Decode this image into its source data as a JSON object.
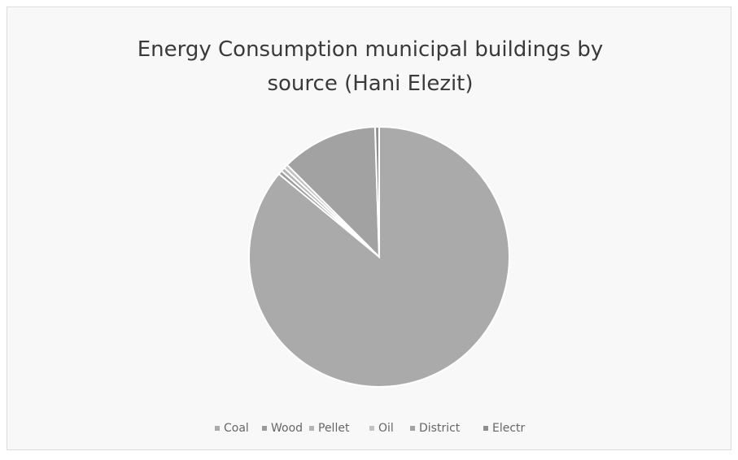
{
  "chart_data": {
    "type": "pie",
    "title": "Energy Consumption municipal buildings by source (Hani Elezit)",
    "categories": [
      "Coal",
      "Wood",
      "Pellet",
      "Oil",
      "District",
      "Electr"
    ],
    "values": [
      86,
      0.5,
      0.5,
      0.5,
      12,
      0.5
    ],
    "colors": [
      "#aaaaaa",
      "#9c9c9c",
      "#b4b4b4",
      "#c2c2c2",
      "#a2a2a2",
      "#8e8e8e"
    ],
    "legend": "bottom"
  }
}
